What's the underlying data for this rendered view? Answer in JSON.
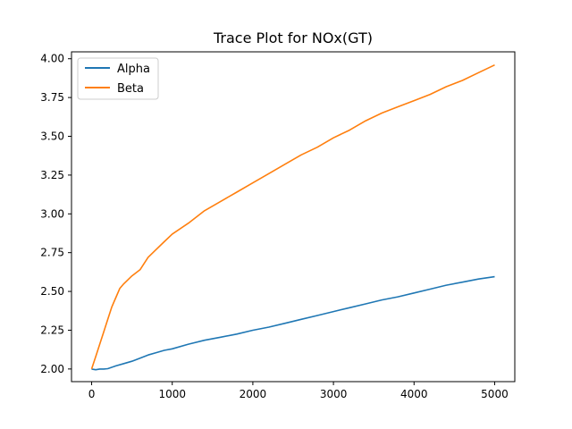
{
  "chart_data": {
    "type": "line",
    "title": "Trace Plot for NOx(GT)",
    "xlabel": "",
    "ylabel": "",
    "xlim": [
      -250,
      5250
    ],
    "ylim": [
      1.9185,
      4.0445
    ],
    "x_ticks": [
      0,
      1000,
      2000,
      3000,
      4000,
      5000
    ],
    "y_ticks": [
      2.0,
      2.25,
      2.5,
      2.75,
      3.0,
      3.25,
      3.5,
      3.75,
      4.0
    ],
    "grid": false,
    "legend_position": "top-left",
    "series": [
      {
        "name": "Alpha",
        "color": "#1f77b4",
        "x": [
          0,
          50,
          100,
          150,
          200,
          300,
          400,
          500,
          600,
          700,
          800,
          900,
          1000,
          1200,
          1400,
          1600,
          1800,
          2000,
          2200,
          2400,
          2600,
          2800,
          3000,
          3200,
          3400,
          3600,
          3800,
          4000,
          4200,
          4400,
          4600,
          4800,
          5000
        ],
        "y": [
          2.0,
          1.995,
          2.0,
          2.0,
          2.002,
          2.02,
          2.035,
          2.05,
          2.07,
          2.09,
          2.105,
          2.12,
          2.13,
          2.16,
          2.185,
          2.205,
          2.225,
          2.25,
          2.27,
          2.295,
          2.32,
          2.345,
          2.37,
          2.395,
          2.42,
          2.445,
          2.465,
          2.49,
          2.515,
          2.54,
          2.56,
          2.58,
          2.595
        ]
      },
      {
        "name": "Beta",
        "color": "#ff7f0e",
        "x": [
          0,
          50,
          100,
          150,
          200,
          250,
          300,
          350,
          400,
          500,
          600,
          700,
          800,
          900,
          1000,
          1200,
          1400,
          1600,
          1800,
          2000,
          2200,
          2400,
          2600,
          2800,
          3000,
          3200,
          3400,
          3600,
          3800,
          4000,
          4200,
          4400,
          4600,
          4800,
          5000
        ],
        "y": [
          2.0,
          2.08,
          2.16,
          2.24,
          2.32,
          2.4,
          2.46,
          2.52,
          2.55,
          2.6,
          2.64,
          2.72,
          2.77,
          2.82,
          2.87,
          2.94,
          3.02,
          3.08,
          3.14,
          3.2,
          3.26,
          3.32,
          3.38,
          3.43,
          3.49,
          3.54,
          3.6,
          3.65,
          3.69,
          3.73,
          3.77,
          3.82,
          3.86,
          3.91,
          3.96
        ]
      }
    ]
  }
}
